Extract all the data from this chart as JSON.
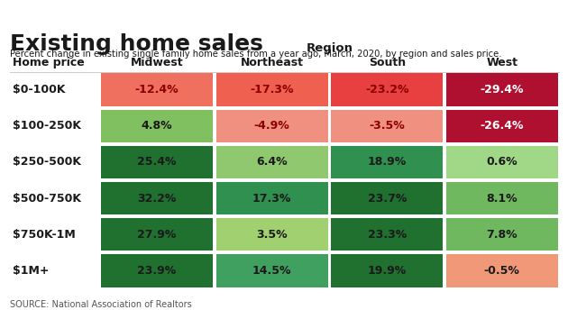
{
  "title": "Existing home sales",
  "subtitle": "Percent change in existing single family home sales from a year ago, March, 2020, by region and sales price.",
  "source": "SOURCE: National Association of Realtors",
  "region_label": "Region",
  "col_headers": [
    "Midwest",
    "Northeast",
    "South",
    "West"
  ],
  "row_headers": [
    "$0-100K",
    "$100-250K",
    "$250-500K",
    "$500-750K",
    "$750K-1M",
    "$1M+"
  ],
  "home_price_label": "Home price",
  "values": [
    [
      -12.4,
      -17.3,
      -23.2,
      -29.4
    ],
    [
      4.8,
      -4.9,
      -3.5,
      -26.4
    ],
    [
      25.4,
      6.4,
      18.9,
      0.6
    ],
    [
      32.2,
      17.3,
      23.7,
      8.1
    ],
    [
      27.9,
      3.5,
      23.3,
      7.8
    ],
    [
      23.9,
      14.5,
      19.9,
      -0.5
    ]
  ],
  "cell_colors": [
    [
      "#f07060",
      "#f06050",
      "#e84040",
      "#b01030"
    ],
    [
      "#80c060",
      "#f09080",
      "#f09080",
      "#b01030"
    ],
    [
      "#207030",
      "#90c870",
      "#309050",
      "#a0d888"
    ],
    [
      "#207030",
      "#309050",
      "#207030",
      "#70b860"
    ],
    [
      "#207030",
      "#a0d070",
      "#207030",
      "#70b860"
    ],
    [
      "#207030",
      "#40a060",
      "#207030",
      "#f09878"
    ]
  ],
  "text_colors": [
    [
      "#8b0000",
      "#8b0000",
      "#8b0000",
      "#ffffff"
    ],
    [
      "#1a1a1a",
      "#8b0000",
      "#8b0000",
      "#ffffff"
    ],
    [
      "#1a1a1a",
      "#1a1a1a",
      "#1a1a1a",
      "#1a1a1a"
    ],
    [
      "#1a1a1a",
      "#1a1a1a",
      "#1a1a1a",
      "#1a1a1a"
    ],
    [
      "#1a1a1a",
      "#1a1a1a",
      "#1a1a1a",
      "#1a1a1a"
    ],
    [
      "#1a1a1a",
      "#1a1a1a",
      "#1a1a1a",
      "#1a1a1a"
    ]
  ],
  "top_bar_color": "#1a3a5c",
  "background_color": "#ffffff"
}
